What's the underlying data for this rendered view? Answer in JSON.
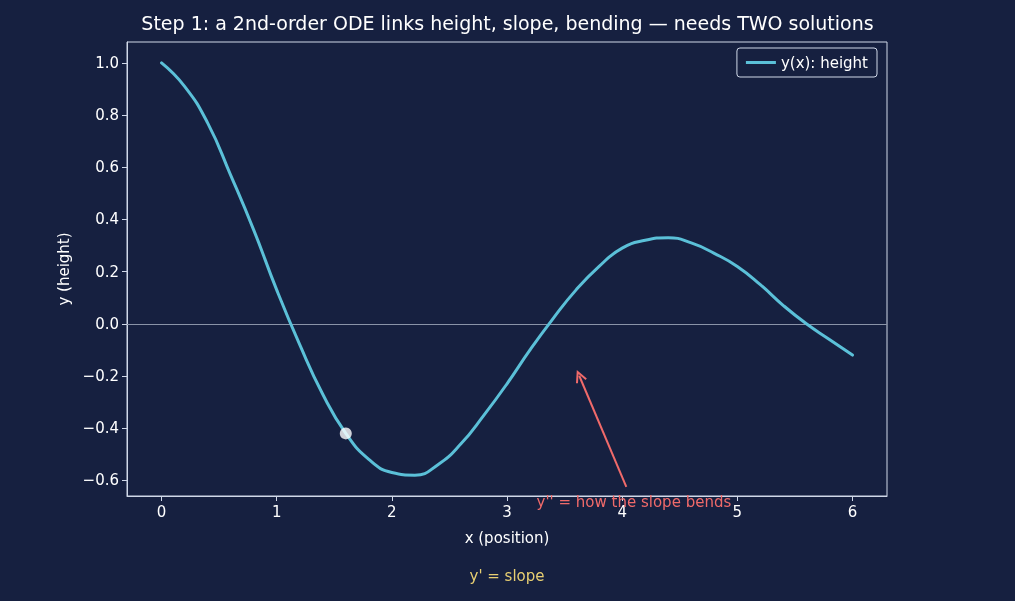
{
  "chart_data": {
    "type": "line",
    "title": "Step 1: a 2nd-order ODE links height, slope, bending — needs TWO solutions",
    "xlabel": "x (position)",
    "ylabel": "y (height)",
    "xlim": [
      -0.3,
      6.3
    ],
    "xticks": [
      0,
      1,
      2,
      3,
      4,
      5,
      6
    ],
    "ylim": [
      -0.66,
      1.08
    ],
    "yticks": [
      -0.6,
      -0.4,
      -0.2,
      {
        "value": 0,
        "label": "0.0"
      },
      0.2,
      0.4,
      0.6,
      0.8,
      {
        "value": 1,
        "label": "1.0"
      }
    ],
    "grid": false,
    "legend": "top right",
    "marker": "none",
    "line_style": "solid",
    "series": [
      {
        "name": "y(x): height",
        "color": "#5bc0d8",
        "x": [
          0,
          0.2,
          0.4,
          0.6,
          0.8,
          1.0,
          1.2,
          1.4,
          1.6,
          1.8,
          2.0,
          2.2,
          2.4,
          2.6,
          2.8,
          3.0,
          3.2,
          3.4,
          3.6,
          3.8,
          4.0,
          4.2,
          4.4,
          4.6,
          4.8,
          5.0,
          5.2,
          5.4,
          5.6,
          5.8,
          6.0
        ],
        "values": [
          1.0,
          0.91,
          0.77,
          0.57,
          0.36,
          0.13,
          -0.08,
          -0.27,
          -0.42,
          -0.52,
          -0.57,
          -0.58,
          -0.54,
          -0.46,
          -0.35,
          -0.23,
          -0.1,
          0.02,
          0.13,
          0.22,
          0.29,
          0.32,
          0.33,
          0.31,
          0.27,
          0.22,
          0.15,
          0.07,
          0.0,
          -0.06,
          -0.12
        ]
      },
      {
        "type": "scatter",
        "marker": "circle",
        "color": "#ffffff",
        "x": [
          1.6
        ],
        "values": [
          -0.42
        ]
      }
    ],
    "ref_lines": [
      {
        "axis": "y",
        "value": 0,
        "color": "#8a93a8",
        "line_style": "solid"
      }
    ],
    "annotations": [
      "y'' = how the slope bends",
      "y' = slope"
    ]
  }
}
